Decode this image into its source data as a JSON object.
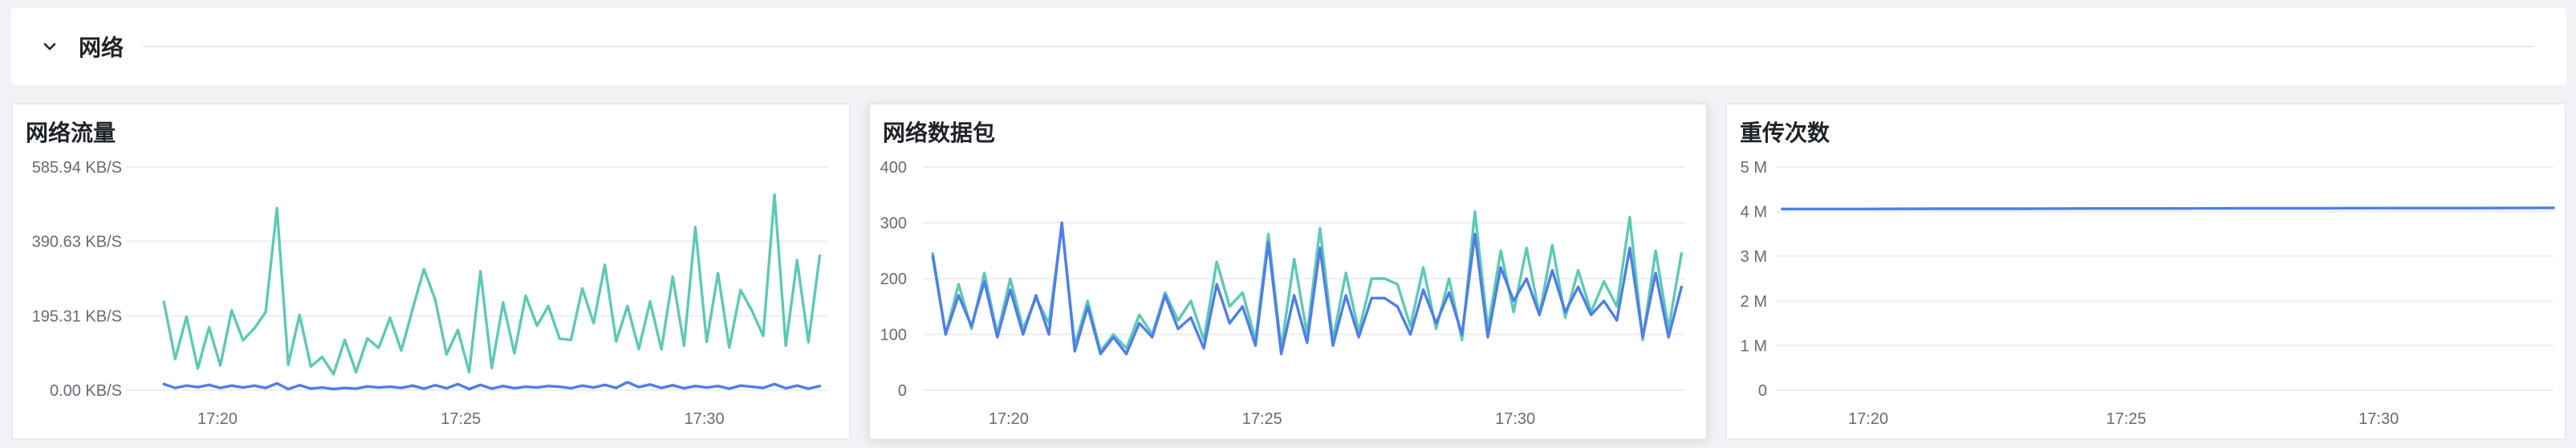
{
  "section": {
    "title": "网络",
    "toggle_icon": "chevron-down-icon"
  },
  "colors": {
    "teal": "#5ec9b5",
    "blue": "#4f7ee8",
    "grid": "#eceef1",
    "axis_text": "#666b73"
  },
  "panels": [
    {
      "title": "网络流量",
      "chart_data": {
        "type": "line",
        "title": "网络流量",
        "y_ticks": [
          "585.94 KB/S",
          "390.63 KB/S",
          "195.31 KB/S",
          "0.00 KB/S"
        ],
        "ylim": [
          0,
          585.94
        ],
        "y_unit": "KB/S",
        "x_ticks": [
          "17:20",
          "17:25",
          "17:30"
        ],
        "grid": true,
        "series": [
          {
            "color": "#5ec9b5",
            "values": [
              232,
              82,
              193,
              57,
              165,
              65,
              210,
              131,
              162,
              205,
              478,
              67,
              198,
              62,
              87,
              42,
              132,
              47,
              136,
              111,
              190,
              104,
              213,
              318,
              237,
              94,
              158,
              47,
              312,
              58,
              230,
              97,
              248,
              169,
              221,
              135,
              132,
              267,
              176,
              329,
              128,
              221,
              108,
              233,
              107,
              298,
              117,
              428,
              127,
              307,
              112,
              263,
              209,
              143,
              513,
              117,
              341,
              126,
              353
            ]
          },
          {
            "color": "#4f7ee8",
            "values": [
              16,
              6,
              12,
              8,
              14,
              6,
              12,
              7,
              12,
              6,
              18,
              3,
              13,
              4,
              7,
              3,
              6,
              4,
              10,
              7,
              9,
              6,
              12,
              4,
              13,
              5,
              16,
              3,
              14,
              4,
              11,
              5,
              9,
              7,
              11,
              9,
              5,
              12,
              7,
              14,
              6,
              21,
              8,
              15,
              6,
              13,
              5,
              11,
              7,
              11,
              4,
              12,
              9,
              6,
              16,
              5,
              12,
              4,
              11
            ]
          }
        ]
      }
    },
    {
      "title": "网络数据包",
      "chart_data": {
        "type": "line",
        "title": "网络数据包",
        "y_ticks": [
          "400",
          "300",
          "200",
          "100",
          "0"
        ],
        "ylim": [
          0,
          400
        ],
        "x_ticks": [
          "17:20",
          "17:25",
          "17:30"
        ],
        "grid": true,
        "series": [
          {
            "color": "#5ec9b5",
            "values": [
              245,
              100,
              190,
              110,
              210,
              100,
              200,
              110,
              165,
              120,
              295,
              80,
              160,
              70,
              100,
              75,
              135,
              100,
              175,
              125,
              160,
              90,
              230,
              150,
              175,
              90,
              280,
              75,
              235,
              100,
              290,
              90,
              210,
              105,
              200,
              200,
              190,
              115,
              220,
              110,
              200,
              90,
              320,
              110,
              250,
              140,
              255,
              135,
              260,
              130,
              215,
              140,
              195,
              150,
              310,
              90,
              250,
              110,
              245
            ]
          },
          {
            "color": "#4f7ee8",
            "values": [
              240,
              100,
              170,
              115,
              195,
              95,
              180,
              100,
              170,
              100,
              300,
              70,
              150,
              65,
              95,
              65,
              120,
              95,
              170,
              110,
              130,
              75,
              190,
              120,
              150,
              80,
              265,
              65,
              170,
              85,
              255,
              80,
              170,
              95,
              165,
              165,
              150,
              100,
              180,
              120,
              175,
              100,
              280,
              95,
              220,
              160,
              200,
              135,
              215,
              140,
              185,
              135,
              160,
              125,
              255,
              95,
              210,
              95,
              185
            ]
          }
        ]
      }
    },
    {
      "title": "重传次数",
      "chart_data": {
        "type": "line",
        "title": "重传次数",
        "y_ticks": [
          "5 M",
          "4 M",
          "3 M",
          "2 M",
          "1 M",
          "0"
        ],
        "ylim": [
          0,
          5
        ],
        "y_unit": "M",
        "x_ticks": [
          "17:20",
          "17:25",
          "17:30"
        ],
        "grid": true,
        "series": [
          {
            "color": "#4f7ee8",
            "values": [
              4.06,
              4.06,
              4.065,
              4.065,
              4.07,
              4.07,
              4.075,
              4.075,
              4.08,
              4.08,
              4.085
            ]
          }
        ]
      }
    }
  ]
}
